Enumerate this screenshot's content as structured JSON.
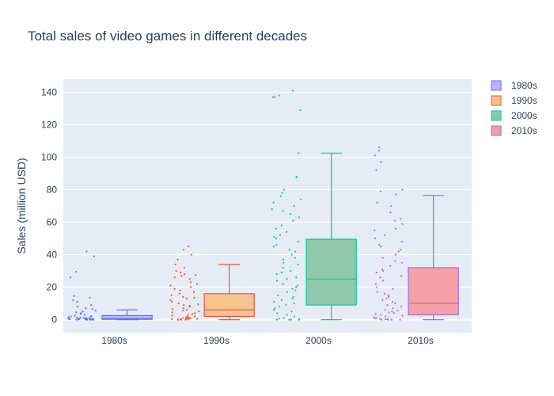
{
  "chart_data": {
    "type": "box",
    "title": "Total sales of video games in different decades",
    "xlabel": "",
    "ylabel": "Sales (million USD)",
    "ylim": [
      -8,
      148
    ],
    "yticks": [
      0,
      20,
      40,
      60,
      80,
      100,
      120,
      140
    ],
    "categories": [
      "1980s",
      "1990s",
      "2000s",
      "2010s"
    ],
    "grid": true,
    "legend_position": "top-right",
    "series": [
      {
        "name": "1980s",
        "color": "#636efa",
        "fill": "#b3b8fd",
        "min": 0,
        "q1": 0.2,
        "median": 0.6,
        "q3": 2.5,
        "max": 6,
        "points": [
          42,
          39,
          29.5,
          26,
          14.5,
          13.5,
          12,
          11,
          9,
          8,
          7,
          6.5,
          5.5,
          5,
          4.5,
          4,
          3.5,
          3,
          2.5,
          2.2,
          2,
          1.8,
          1.5,
          1.3,
          1.2,
          1,
          0.9,
          0.8,
          0.7,
          0.6,
          0.5,
          0.5,
          0.4,
          0.4,
          0.3,
          0.3,
          0.2,
          0.2,
          0.2,
          0.1,
          0.1,
          0.1,
          0.1,
          0,
          0,
          0,
          0,
          0
        ]
      },
      {
        "name": "1990s",
        "color": "#ef553b",
        "fill": "#f7c08a",
        "min": 0,
        "q1": 2,
        "median": 6,
        "q3": 16,
        "max": 34,
        "points": [
          45,
          43,
          40,
          37,
          34,
          32,
          30,
          29,
          28,
          27.5,
          27,
          26,
          25,
          23,
          22,
          21,
          20,
          19,
          18,
          17,
          16,
          15,
          14,
          13.5,
          13,
          12,
          11,
          10,
          9.5,
          9,
          8.5,
          8,
          7,
          6.5,
          6,
          5.5,
          5,
          4.5,
          4,
          3.5,
          3,
          2.5,
          2,
          1.8,
          1.5,
          1.2,
          1,
          0.8,
          0.6,
          0.5,
          0.4,
          0.3,
          0.2,
          0.1,
          0,
          0,
          0,
          0
        ]
      },
      {
        "name": "2000s",
        "color": "#00cc96",
        "fill": "#8cc6a8",
        "min": 0,
        "q1": 9,
        "median": 25,
        "q3": 49.5,
        "max": 102.5,
        "points": [
          141,
          138,
          137,
          137,
          129,
          102.5,
          88,
          87.5,
          80,
          78,
          76,
          74,
          72,
          70,
          68,
          67,
          65,
          63,
          61,
          58,
          56,
          54,
          52,
          51,
          50,
          48,
          46,
          45,
          43,
          42,
          40,
          38,
          37,
          35,
          34,
          32,
          30,
          29,
          28,
          26,
          25,
          24,
          22,
          21,
          20,
          19,
          18,
          17,
          15,
          14,
          13,
          12,
          11,
          10,
          9,
          8,
          7,
          6,
          5,
          4,
          3,
          2,
          1,
          0.5,
          0.2,
          0,
          0,
          0,
          0
        ]
      },
      {
        "name": "2010s",
        "color": "#ab63fa",
        "fill": "#f49da0",
        "min": 0,
        "q1": 3,
        "median": 10,
        "q3": 32,
        "max": 76.5,
        "points": [
          106,
          104,
          101,
          97,
          92,
          80,
          79,
          77,
          72,
          70,
          66,
          62,
          61,
          59,
          56,
          55,
          52,
          50,
          48,
          46,
          45,
          43,
          42,
          40,
          38,
          36,
          35,
          33,
          31,
          30,
          29,
          27,
          26,
          24,
          22,
          20,
          19,
          17,
          16,
          15,
          14,
          13,
          12,
          11,
          10,
          9,
          8,
          7,
          6,
          5.5,
          5,
          4.5,
          4,
          3.5,
          3,
          2.5,
          2,
          1.5,
          1,
          0.8,
          0.5,
          0.3,
          0.2,
          0,
          0,
          0,
          0
        ]
      }
    ]
  }
}
